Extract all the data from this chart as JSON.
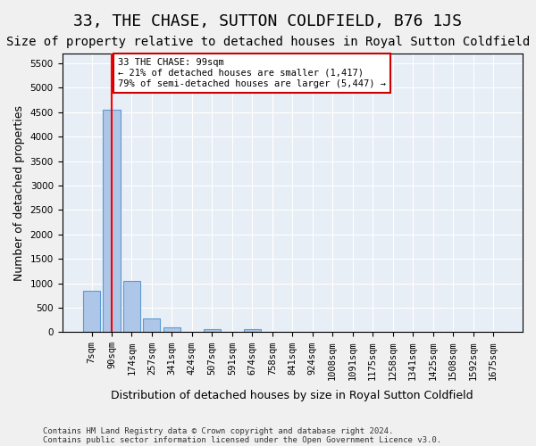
{
  "title": "33, THE CHASE, SUTTON COLDFIELD, B76 1JS",
  "subtitle": "Size of property relative to detached houses in Royal Sutton Coldfield",
  "xlabel": "Distribution of detached houses by size in Royal Sutton Coldfield",
  "ylabel": "Number of detached properties",
  "footer1": "Contains HM Land Registry data © Crown copyright and database right 2024.",
  "footer2": "Contains public sector information licensed under the Open Government Licence v3.0.",
  "categories": [
    "7sqm",
    "90sqm",
    "174sqm",
    "257sqm",
    "341sqm",
    "424sqm",
    "507sqm",
    "591sqm",
    "674sqm",
    "758sqm",
    "841sqm",
    "924sqm",
    "1008sqm",
    "1091sqm",
    "1175sqm",
    "1258sqm",
    "1341sqm",
    "1425sqm",
    "1508sqm",
    "1592sqm",
    "1675sqm"
  ],
  "values": [
    850,
    4550,
    1050,
    280,
    100,
    0,
    55,
    0,
    55,
    0,
    0,
    0,
    0,
    0,
    0,
    0,
    0,
    0,
    0,
    0,
    0
  ],
  "bar_color": "#aec6e8",
  "bar_edge_color": "#5a9bd5",
  "red_line_x": 1,
  "ylim": [
    0,
    5700
  ],
  "yticks": [
    0,
    500,
    1000,
    1500,
    2000,
    2500,
    3000,
    3500,
    4000,
    4500,
    5000,
    5500
  ],
  "annotation_text": "33 THE CHASE: 99sqm\n← 21% of detached houses are smaller (1,417)\n79% of semi-detached houses are larger (5,447) →",
  "annotation_box_color": "#ffffff",
  "annotation_box_edge": "#cc0000",
  "plot_bg_color": "#e8eef5",
  "fig_bg_color": "#f0f0f0",
  "title_fontsize": 13,
  "subtitle_fontsize": 10,
  "axis_fontsize": 9,
  "tick_fontsize": 7.5,
  "footer_fontsize": 6.5
}
